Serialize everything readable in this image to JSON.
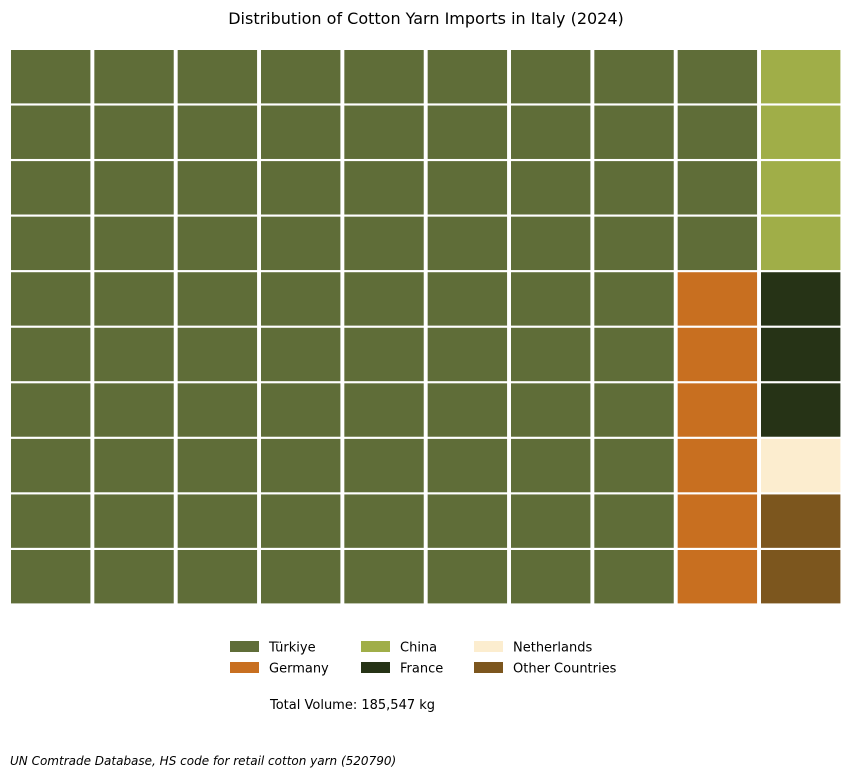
{
  "chart_data": {
    "type": "waffle",
    "title": "Distribution of Cotton Yarn Imports in Italy (2024)",
    "grid": {
      "rows": 10,
      "columns": 10,
      "fill_order": "column-major, left to right, top to bottom"
    },
    "categories": [
      "Türkiye",
      "Germany",
      "China",
      "France",
      "Netherlands",
      "Other Countries"
    ],
    "values": [
      84,
      6,
      4,
      3,
      1,
      2
    ],
    "colors": [
      "#5f6d38",
      "#c86f20",
      "#a0ae48",
      "#263316",
      "#fcedcf",
      "#7c561e"
    ],
    "legend_placement": "bottom-center",
    "total_label": "Total Volume: 185,547 kg",
    "source": "UN Comtrade Database, HS code for retail cotton yarn (520790)"
  }
}
